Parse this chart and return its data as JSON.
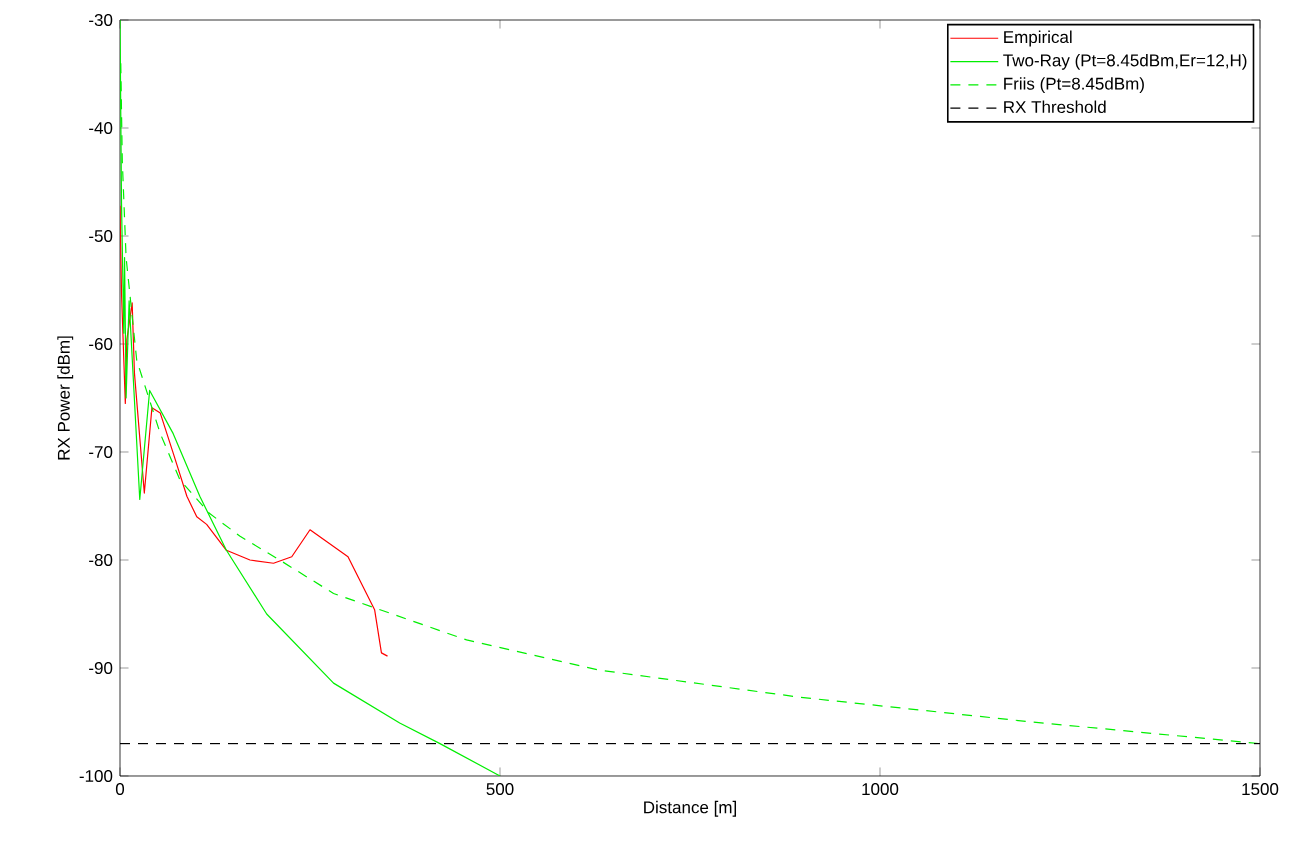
{
  "chart_data": {
    "type": "line",
    "xlabel": "Distance [m]",
    "ylabel": "RX Power [dBm]",
    "xlim": [
      0,
      1500
    ],
    "ylim": [
      -100,
      -30
    ],
    "xticks": [
      0,
      500,
      1000,
      1500
    ],
    "yticks": [
      -100,
      -90,
      -80,
      -70,
      -60,
      -50,
      -40,
      -30
    ],
    "legend": "top right",
    "grid": false,
    "series": [
      {
        "name": "Empirical",
        "color": "#ff0000",
        "line_style": "solid",
        "x": [
          0,
          2,
          7,
          9,
          16,
          19,
          32,
          42,
          53,
          70,
          88,
          101,
          114,
          140,
          171,
          202,
          226,
          250,
          300,
          335,
          344,
          352
        ],
        "values": [
          -47.2,
          -55.3,
          -65.5,
          -59.6,
          -56.2,
          -62.7,
          -73.8,
          -65.9,
          -66.4,
          -70.1,
          -74.1,
          -76.0,
          -76.7,
          -79.1,
          -80.0,
          -80.3,
          -79.7,
          -77.2,
          -79.7,
          -84.6,
          -88.6,
          -88.9
        ]
      },
      {
        "name": "Two-Ray (Pt=8.45dBm,Er=12,H)",
        "color": "#00ee00",
        "line_style": "solid",
        "x": [
          0,
          2,
          5,
          6,
          8,
          12,
          26,
          39,
          70,
          105,
          140,
          193,
          281,
          368,
          421,
          500
        ],
        "values": [
          -30,
          -47,
          -59,
          -52,
          -65,
          -56,
          -74.4,
          -64.3,
          -68.3,
          -74.1,
          -79.1,
          -85.0,
          -91.4,
          -95.1,
          -97.0,
          -100
        ]
      },
      {
        "name": "Friis (Pt=8.45dBm)",
        "color": "#00ee00",
        "line_style": "dashed",
        "x": [
          1,
          3,
          8,
          22,
          53,
          79,
          118,
          158,
          210,
          281,
          456,
          631,
          894,
          1200,
          1500
        ],
        "values": [
          -34,
          -43,
          -52,
          -61.5,
          -68.3,
          -72.6,
          -75.7,
          -77.8,
          -80.0,
          -83.1,
          -87.4,
          -90.2,
          -92.7,
          -95.0,
          -97.0
        ]
      }
    ],
    "ref_lines": [
      {
        "axis": "y",
        "value": -97,
        "label": "RX Threshold",
        "color": "#000000",
        "line_style": "dashed"
      }
    ]
  }
}
